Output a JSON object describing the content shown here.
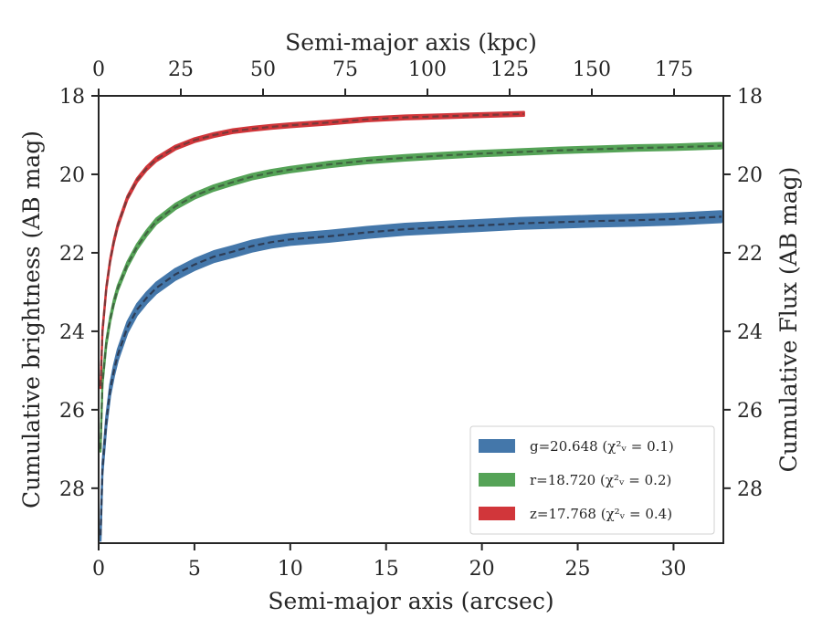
{
  "colors": {
    "g": "#4477aa",
    "r": "#55a357",
    "z": "#d1363a",
    "model_g": "#2a3347",
    "model_r": "#3d5a3d",
    "model_z": "#6a3a3a"
  },
  "chart_data": {
    "type": "line",
    "xlabel": "Semi-major axis (arcsec)",
    "xlabel_top": "Semi-major axis (kpc)",
    "ylabel": "Cumulative brightness (AB mag)",
    "ylabel_right": "Cumulative Flux (AB mag)",
    "xlim": [
      0,
      32.6
    ],
    "xlim_top": [
      0,
      190
    ],
    "ylim": [
      29.4,
      18.0
    ],
    "y_inverted": true,
    "grid": false,
    "legend_position": "lower-right",
    "xticks": [
      "0",
      "5",
      "10",
      "15",
      "20",
      "25",
      "30"
    ],
    "xticks_top": [
      "0",
      "25",
      "50",
      "75",
      "100",
      "125",
      "150",
      "175"
    ],
    "yticks": [
      "18",
      "20",
      "22",
      "24",
      "26",
      "28"
    ],
    "yticks_right": [
      "18",
      "20",
      "22",
      "24",
      "26",
      "28"
    ],
    "legend": [
      {
        "band": "g",
        "text": "g=20.648 (χ²ᵥ = 0.1)"
      },
      {
        "band": "r",
        "text": "r=18.720 (χ²ᵥ = 0.2)"
      },
      {
        "band": "z",
        "text": "z=17.768 (χ²ᵥ = 0.4)"
      }
    ],
    "series": [
      {
        "band": "g",
        "x": [
          0.1,
          0.2,
          0.4,
          0.6,
          0.8,
          1.0,
          1.5,
          2.0,
          2.5,
          3.0,
          4.0,
          5.0,
          6.0,
          7.0,
          8.0,
          9.0,
          10.0,
          12.0,
          14.0,
          16.0,
          18.0,
          20.0,
          22.0,
          24.0,
          26.0,
          28.0,
          30.0,
          32.5
        ],
        "y": [
          29.2,
          27.5,
          26.3,
          25.5,
          25.0,
          24.6,
          23.9,
          23.45,
          23.15,
          22.9,
          22.55,
          22.3,
          22.1,
          21.97,
          21.83,
          21.73,
          21.66,
          21.58,
          21.48,
          21.4,
          21.35,
          21.3,
          21.25,
          21.22,
          21.19,
          21.17,
          21.14,
          21.08
        ],
        "band_width": 0.14
      },
      {
        "band": "r",
        "x": [
          0.1,
          0.2,
          0.4,
          0.6,
          0.8,
          1.0,
          1.5,
          2.0,
          2.5,
          3.0,
          4.0,
          5.0,
          6.0,
          7.0,
          8.0,
          9.0,
          10.0,
          12.0,
          14.0,
          16.0,
          18.0,
          20.0,
          22.0,
          24.0,
          26.0,
          28.0,
          30.0,
          32.5
        ],
        "y": [
          27.0,
          25.3,
          24.3,
          23.7,
          23.25,
          22.9,
          22.3,
          21.85,
          21.5,
          21.2,
          20.82,
          20.55,
          20.35,
          20.2,
          20.06,
          19.96,
          19.88,
          19.75,
          19.65,
          19.58,
          19.52,
          19.47,
          19.43,
          19.39,
          19.36,
          19.33,
          19.31,
          19.27
        ],
        "band_width": 0.07
      },
      {
        "band": "z",
        "x": [
          0.1,
          0.2,
          0.4,
          0.6,
          0.8,
          1.0,
          1.5,
          2.0,
          2.5,
          3.0,
          4.0,
          5.0,
          6.0,
          7.0,
          8.0,
          9.0,
          10.0,
          12.0,
          14.0,
          16.0,
          18.0,
          20.0,
          22.2
        ],
        "y": [
          25.4,
          24.0,
          22.9,
          22.2,
          21.7,
          21.3,
          20.6,
          20.15,
          19.85,
          19.62,
          19.32,
          19.13,
          19.0,
          18.9,
          18.84,
          18.79,
          18.75,
          18.68,
          18.6,
          18.55,
          18.52,
          18.49,
          18.46
        ],
        "band_width": 0.05
      }
    ]
  }
}
